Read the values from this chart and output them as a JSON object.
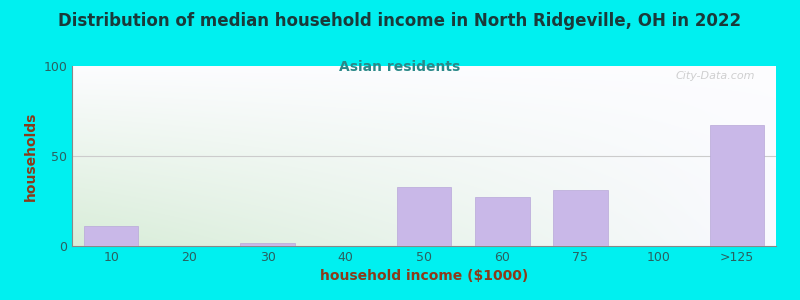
{
  "title": "Distribution of median household income in North Ridgeville, OH in 2022",
  "subtitle": "Asian residents",
  "xlabel": "household income ($1000)",
  "ylabel": "households",
  "categories": [
    "10",
    "20",
    "30",
    "40",
    "50",
    "60",
    "75",
    "100",
    ">125"
  ],
  "values": [
    11,
    0,
    1.5,
    0,
    33,
    27,
    31,
    0,
    67
  ],
  "bar_color": "#c9b8e8",
  "bar_edgecolor": "#b8a8d8",
  "ylim": [
    0,
    100
  ],
  "yticks": [
    0,
    50,
    100
  ],
  "background_outer": "#00f0f0",
  "bg_gradient_left": "#d8edd8",
  "bg_gradient_right": "#f8f8ff",
  "title_color": "#1a3a3a",
  "subtitle_color": "#2a8888",
  "axis_label_color": "#8b3a1a",
  "tick_label_color": "#2a6060",
  "watermark": "City-Data.com",
  "title_fontsize": 12,
  "subtitle_fontsize": 10,
  "axis_label_fontsize": 10,
  "tick_fontsize": 9
}
